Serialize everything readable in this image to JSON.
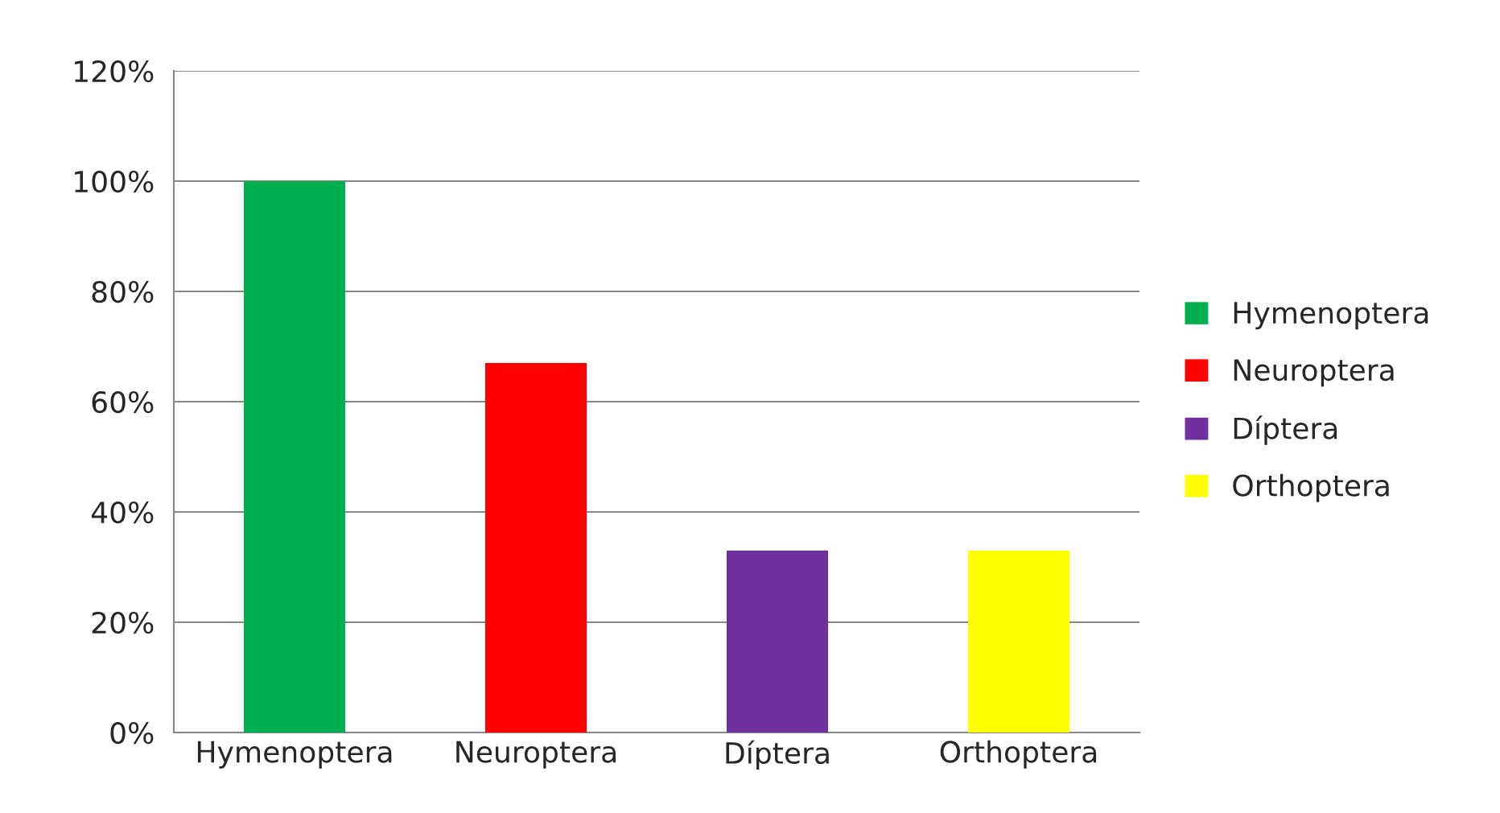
{
  "chart_data": {
    "type": "bar",
    "categories": [
      "Hymenoptera",
      "Neuroptera",
      "Díptera",
      "Orthoptera"
    ],
    "series": [
      {
        "name": "Hymenoptera",
        "color": "#00b050",
        "values": [
          100,
          null,
          null,
          null
        ]
      },
      {
        "name": "Neuroptera",
        "color": "#ff0000",
        "values": [
          null,
          67,
          null,
          null
        ]
      },
      {
        "name": "Díptera",
        "color": "#7030a0",
        "values": [
          null,
          null,
          33,
          null
        ]
      },
      {
        "name": "Orthoptera",
        "color": "#ffff00",
        "values": [
          null,
          null,
          null,
          33
        ]
      }
    ],
    "ylim": [
      0,
      120
    ],
    "yticks": [
      {
        "value": 0,
        "label": "0%"
      },
      {
        "value": 20,
        "label": "20%"
      },
      {
        "value": 40,
        "label": "40%"
      },
      {
        "value": 60,
        "label": "60%"
      },
      {
        "value": 80,
        "label": "80%"
      },
      {
        "value": 100,
        "label": "100%"
      },
      {
        "value": 120,
        "label": "120%"
      }
    ],
    "grid": "y",
    "legend": "right"
  }
}
